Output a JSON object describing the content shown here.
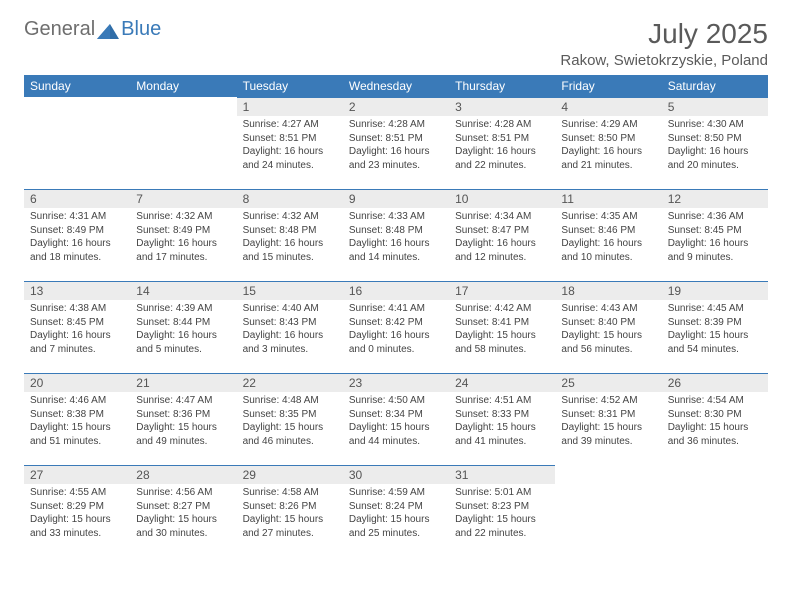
{
  "logo": {
    "part1": "General",
    "part2": "Blue"
  },
  "title": "July 2025",
  "location": "Rakow, Swietokrzyskie, Poland",
  "colors": {
    "header_bg": "#3a7ab8",
    "header_text": "#ffffff",
    "daynum_bg": "#ececec",
    "day_border": "#3a7ab8",
    "text": "#444444",
    "logo_gray": "#6e6e6e",
    "logo_blue": "#3a7ab8",
    "title_color": "#5a5a5a"
  },
  "day_headers": [
    "Sunday",
    "Monday",
    "Tuesday",
    "Wednesday",
    "Thursday",
    "Friday",
    "Saturday"
  ],
  "weeks": [
    [
      null,
      null,
      {
        "n": "1",
        "sr": "4:27 AM",
        "ss": "8:51 PM",
        "dl": "16 hours and 24 minutes."
      },
      {
        "n": "2",
        "sr": "4:28 AM",
        "ss": "8:51 PM",
        "dl": "16 hours and 23 minutes."
      },
      {
        "n": "3",
        "sr": "4:28 AM",
        "ss": "8:51 PM",
        "dl": "16 hours and 22 minutes."
      },
      {
        "n": "4",
        "sr": "4:29 AM",
        "ss": "8:50 PM",
        "dl": "16 hours and 21 minutes."
      },
      {
        "n": "5",
        "sr": "4:30 AM",
        "ss": "8:50 PM",
        "dl": "16 hours and 20 minutes."
      }
    ],
    [
      {
        "n": "6",
        "sr": "4:31 AM",
        "ss": "8:49 PM",
        "dl": "16 hours and 18 minutes."
      },
      {
        "n": "7",
        "sr": "4:32 AM",
        "ss": "8:49 PM",
        "dl": "16 hours and 17 minutes."
      },
      {
        "n": "8",
        "sr": "4:32 AM",
        "ss": "8:48 PM",
        "dl": "16 hours and 15 minutes."
      },
      {
        "n": "9",
        "sr": "4:33 AM",
        "ss": "8:48 PM",
        "dl": "16 hours and 14 minutes."
      },
      {
        "n": "10",
        "sr": "4:34 AM",
        "ss": "8:47 PM",
        "dl": "16 hours and 12 minutes."
      },
      {
        "n": "11",
        "sr": "4:35 AM",
        "ss": "8:46 PM",
        "dl": "16 hours and 10 minutes."
      },
      {
        "n": "12",
        "sr": "4:36 AM",
        "ss": "8:45 PM",
        "dl": "16 hours and 9 minutes."
      }
    ],
    [
      {
        "n": "13",
        "sr": "4:38 AM",
        "ss": "8:45 PM",
        "dl": "16 hours and 7 minutes."
      },
      {
        "n": "14",
        "sr": "4:39 AM",
        "ss": "8:44 PM",
        "dl": "16 hours and 5 minutes."
      },
      {
        "n": "15",
        "sr": "4:40 AM",
        "ss": "8:43 PM",
        "dl": "16 hours and 3 minutes."
      },
      {
        "n": "16",
        "sr": "4:41 AM",
        "ss": "8:42 PM",
        "dl": "16 hours and 0 minutes."
      },
      {
        "n": "17",
        "sr": "4:42 AM",
        "ss": "8:41 PM",
        "dl": "15 hours and 58 minutes."
      },
      {
        "n": "18",
        "sr": "4:43 AM",
        "ss": "8:40 PM",
        "dl": "15 hours and 56 minutes."
      },
      {
        "n": "19",
        "sr": "4:45 AM",
        "ss": "8:39 PM",
        "dl": "15 hours and 54 minutes."
      }
    ],
    [
      {
        "n": "20",
        "sr": "4:46 AM",
        "ss": "8:38 PM",
        "dl": "15 hours and 51 minutes."
      },
      {
        "n": "21",
        "sr": "4:47 AM",
        "ss": "8:36 PM",
        "dl": "15 hours and 49 minutes."
      },
      {
        "n": "22",
        "sr": "4:48 AM",
        "ss": "8:35 PM",
        "dl": "15 hours and 46 minutes."
      },
      {
        "n": "23",
        "sr": "4:50 AM",
        "ss": "8:34 PM",
        "dl": "15 hours and 44 minutes."
      },
      {
        "n": "24",
        "sr": "4:51 AM",
        "ss": "8:33 PM",
        "dl": "15 hours and 41 minutes."
      },
      {
        "n": "25",
        "sr": "4:52 AM",
        "ss": "8:31 PM",
        "dl": "15 hours and 39 minutes."
      },
      {
        "n": "26",
        "sr": "4:54 AM",
        "ss": "8:30 PM",
        "dl": "15 hours and 36 minutes."
      }
    ],
    [
      {
        "n": "27",
        "sr": "4:55 AM",
        "ss": "8:29 PM",
        "dl": "15 hours and 33 minutes."
      },
      {
        "n": "28",
        "sr": "4:56 AM",
        "ss": "8:27 PM",
        "dl": "15 hours and 30 minutes."
      },
      {
        "n": "29",
        "sr": "4:58 AM",
        "ss": "8:26 PM",
        "dl": "15 hours and 27 minutes."
      },
      {
        "n": "30",
        "sr": "4:59 AM",
        "ss": "8:24 PM",
        "dl": "15 hours and 25 minutes."
      },
      {
        "n": "31",
        "sr": "5:01 AM",
        "ss": "8:23 PM",
        "dl": "15 hours and 22 minutes."
      },
      null,
      null
    ]
  ],
  "labels": {
    "sunrise": "Sunrise:",
    "sunset": "Sunset:",
    "daylight": "Daylight:"
  }
}
